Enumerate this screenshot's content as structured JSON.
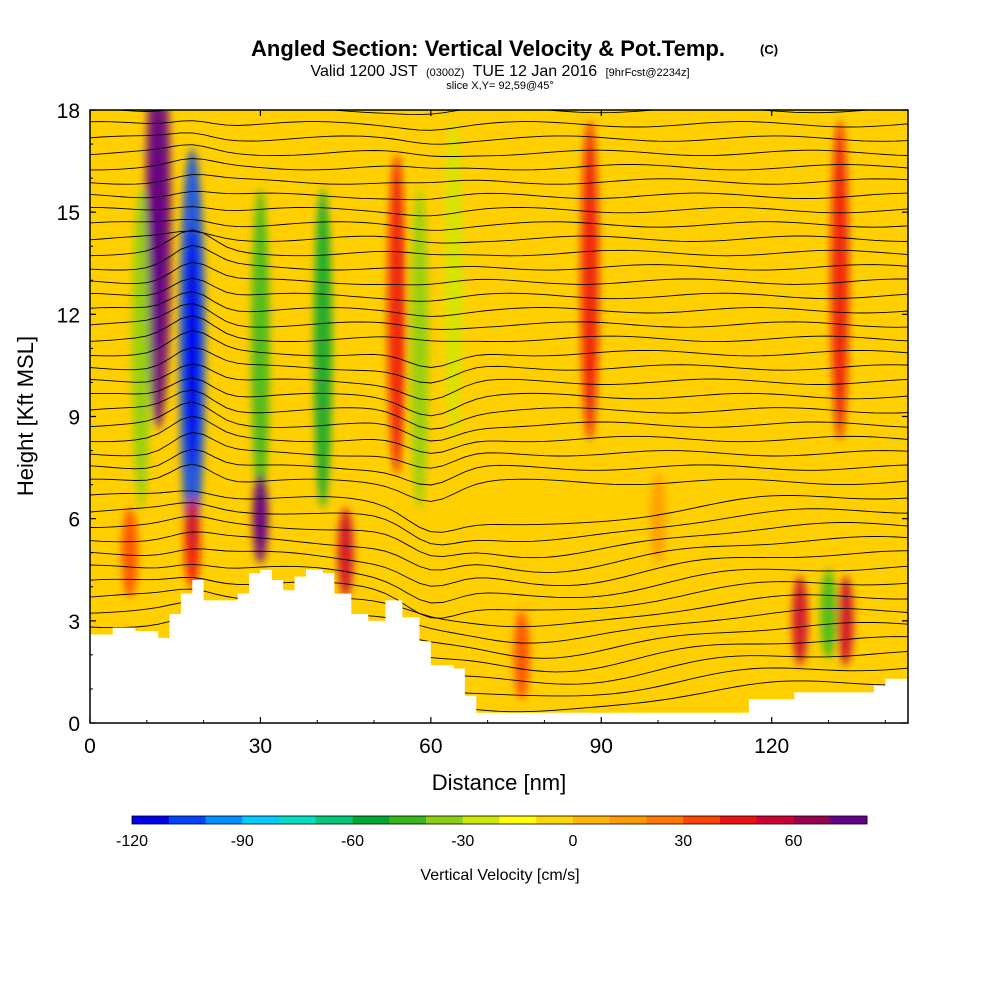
{
  "chart_data": {
    "type": "heatmap",
    "title": "Angled Section: Vertical Velocity & Pot.Temp.",
    "title_suffix": "(C)",
    "subtitle": {
      "valid_prefix": "Valid 1200 JST",
      "utc": "(0300Z)",
      "date": "TUE 12 Jan 2016",
      "forecast": "[9hrFcst@2234z]"
    },
    "slice_label": "slice X,Y= 92,59@45°",
    "xlabel": "Distance [nm]",
    "ylabel": "Height [Kft MSL]",
    "xlim": [
      0,
      144
    ],
    "ylim": [
      0,
      18
    ],
    "x_ticks": [
      0,
      30,
      60,
      90,
      120
    ],
    "y_ticks": [
      0,
      3,
      6,
      9,
      12,
      15,
      18
    ],
    "colorbar": {
      "label": "Vertical Velocity [cm/s]",
      "range": [
        -120,
        80
      ],
      "tick_values": [
        -120,
        -90,
        -60,
        -30,
        0,
        30,
        60
      ],
      "colors": [
        "#0000ee",
        "#0044ff",
        "#0090ff",
        "#00ccff",
        "#00e0c0",
        "#00c878",
        "#00a832",
        "#36b81c",
        "#8ad010",
        "#d0e800",
        "#ffff00",
        "#ffd700",
        "#ffb400",
        "#ff9a00",
        "#ff7600",
        "#ff4400",
        "#ee1010",
        "#cc0033",
        "#9a0050",
        "#660088"
      ]
    },
    "terrain_profile": [
      [
        0,
        2.6
      ],
      [
        4,
        2.8
      ],
      [
        8,
        2.7
      ],
      [
        12,
        2.5
      ],
      [
        14,
        3.2
      ],
      [
        16,
        3.8
      ],
      [
        18,
        4.2
      ],
      [
        20,
        3.6
      ],
      [
        22,
        3.6
      ],
      [
        26,
        3.8
      ],
      [
        28,
        4.4
      ],
      [
        30,
        4.5
      ],
      [
        32,
        4.2
      ],
      [
        34,
        3.9
      ],
      [
        36,
        4.3
      ],
      [
        38,
        4.5
      ],
      [
        41,
        4.4
      ],
      [
        43,
        3.8
      ],
      [
        46,
        3.2
      ],
      [
        49,
        3.0
      ],
      [
        52,
        3.6
      ],
      [
        55,
        3.1
      ],
      [
        58,
        2.4
      ],
      [
        60,
        1.7
      ],
      [
        64,
        1.6
      ],
      [
        66,
        0.8
      ],
      [
        68,
        0.3
      ],
      [
        78,
        0.3
      ],
      [
        90,
        0.3
      ],
      [
        100,
        0.3
      ],
      [
        114,
        0.3
      ],
      [
        116,
        0.7
      ],
      [
        120,
        0.7
      ],
      [
        124,
        0.9
      ],
      [
        128,
        0.9
      ],
      [
        134,
        0.9
      ],
      [
        138,
        1.1
      ],
      [
        140,
        1.3
      ],
      [
        144,
        1.3
      ]
    ],
    "velocity_features": [
      {
        "x": 12,
        "y": 14.5,
        "value": 75
      },
      {
        "x": 18,
        "y": 11,
        "value": -105
      },
      {
        "x": 30,
        "y": 11,
        "value": -50
      },
      {
        "x": 41,
        "y": 11,
        "value": -55
      },
      {
        "x": 54,
        "y": 12,
        "value": 40
      },
      {
        "x": 58,
        "y": 11,
        "value": -40
      },
      {
        "x": 64,
        "y": 13,
        "value": -30
      },
      {
        "x": 88,
        "y": 13,
        "value": 40
      },
      {
        "x": 132,
        "y": 13,
        "value": 45
      },
      {
        "x": 30,
        "y": 6,
        "value": 70
      },
      {
        "x": 18,
        "y": 5.3,
        "value": 40
      },
      {
        "x": 45,
        "y": 5,
        "value": 50
      },
      {
        "x": 125,
        "y": 3,
        "value": 50
      },
      {
        "x": 133,
        "y": 3,
        "value": 50
      },
      {
        "x": 130,
        "y": 3.2,
        "value": -45
      },
      {
        "x": 9,
        "y": 11,
        "value": -40
      },
      {
        "x": 7,
        "y": 5,
        "value": 35
      },
      {
        "x": 76,
        "y": 2,
        "value": 30
      },
      {
        "x": 100,
        "y": 6,
        "value": 15
      }
    ],
    "theta_contour_levels": [
      8,
      10,
      12,
      14,
      16,
      18,
      20,
      22,
      24,
      26,
      28,
      30
    ]
  }
}
